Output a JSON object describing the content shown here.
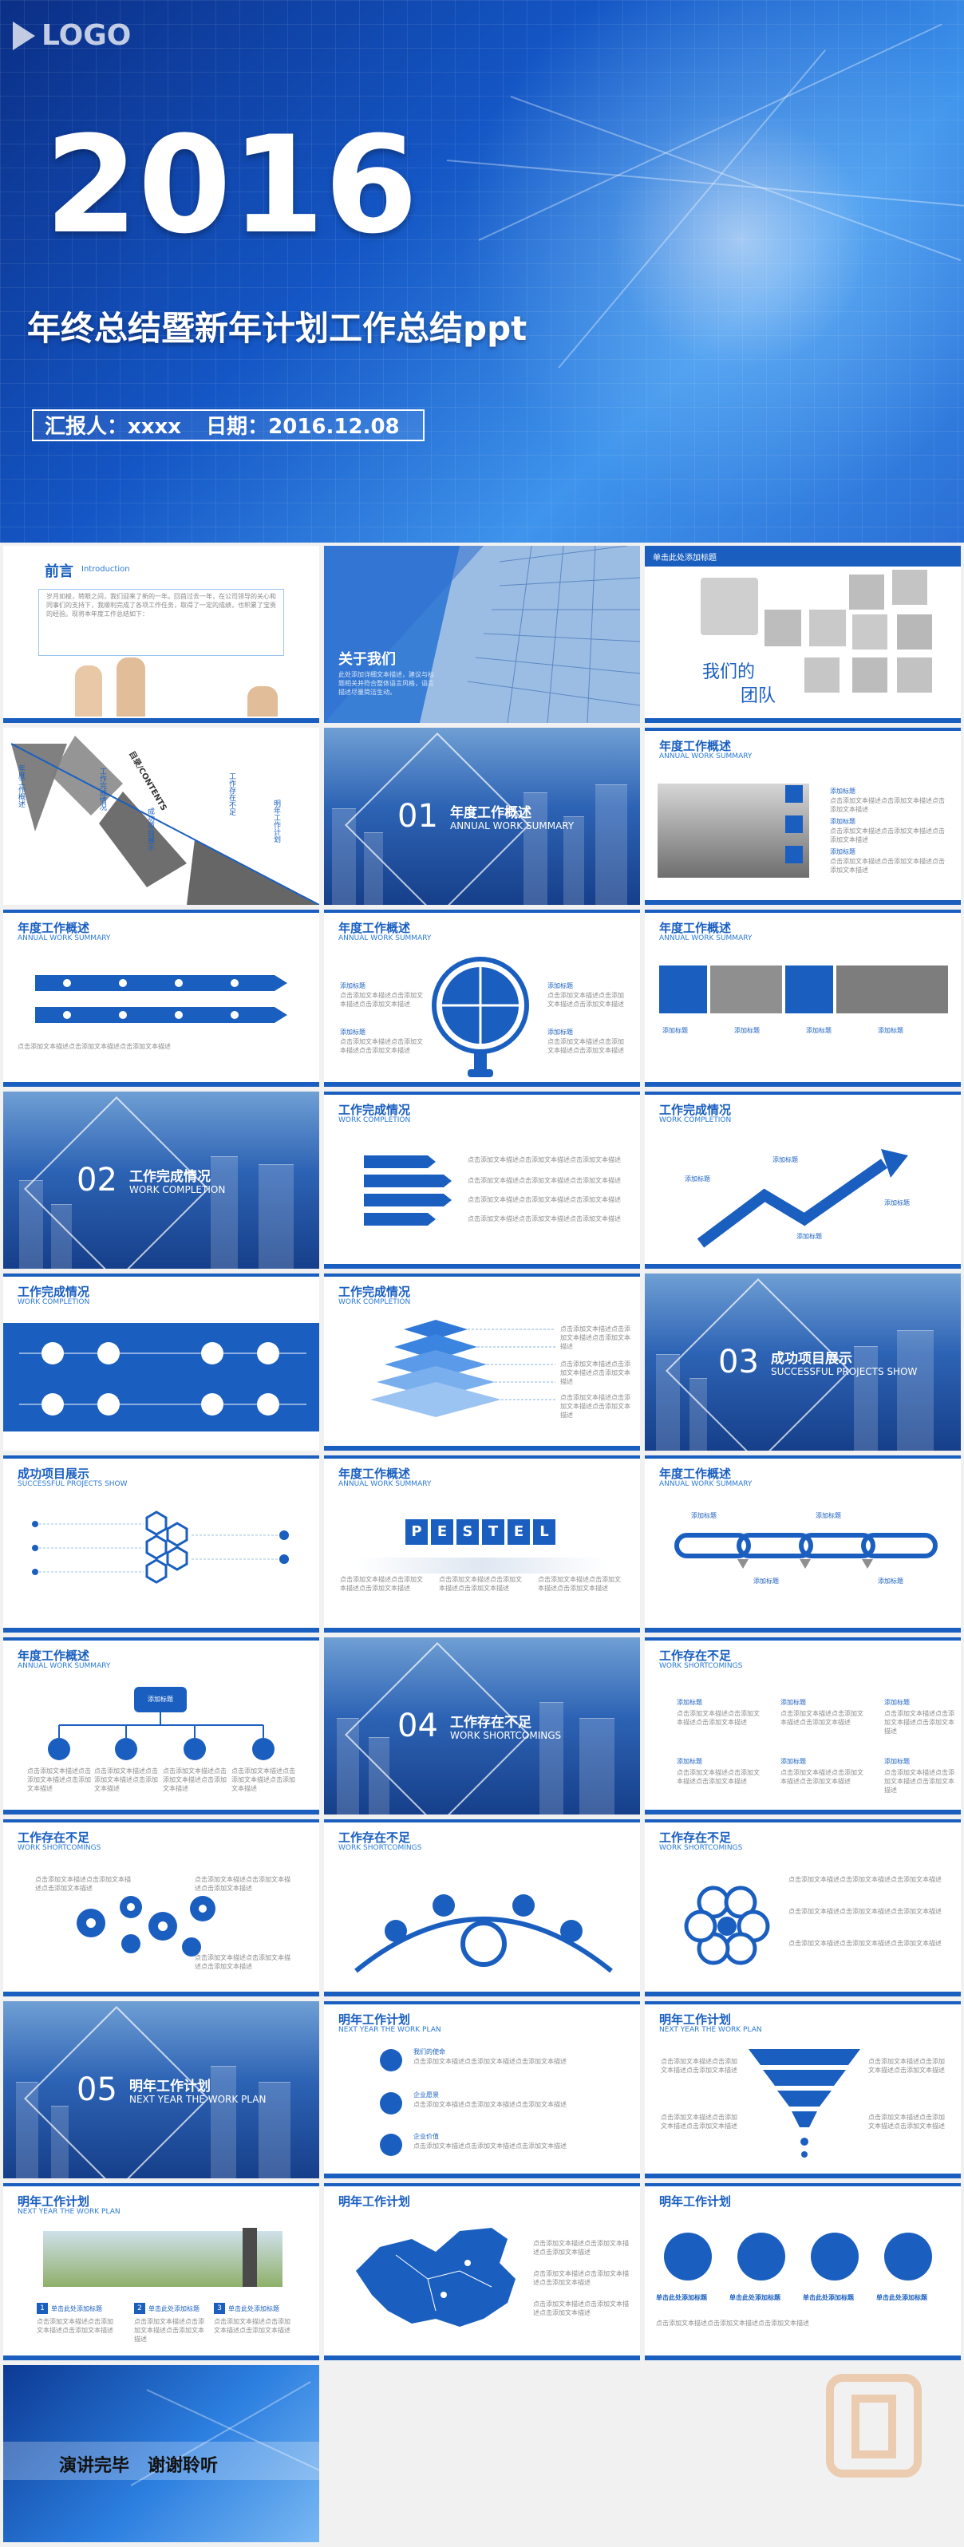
{
  "cover": {
    "logo": "LOGO",
    "year": "2016",
    "title": "年终总结暨新年计划工作总结ppt",
    "reporter_label": "汇报人：xxxx",
    "date_label": "日期：2016.12.08"
  },
  "slides": {
    "preface": {
      "title": "前言",
      "subtitle": "Introduction",
      "text": "岁月如梭，转眼之间，我们迎来了新的一年。回首过去一年，在公司领导的关心和同事们的支持下，我顺利完成了各项工作任务，取得了一定的成绩，也积累了宝贵的经验。现将本年度工作总结如下："
    },
    "about": {
      "title": "关于我们",
      "text": "此处添加详细文本描述，建议与标题相关并符合整体语言风格，语言描述尽量简洁生动。"
    },
    "team": {
      "banner": "单击此处添加标题",
      "title1": "我们的",
      "title2": "团队"
    },
    "contents": {
      "label": "目录/CONTENTS",
      "items": [
        "年度工作概述",
        "工作完成情况",
        "成功项目展示",
        "工作存在不足",
        "明年工作计划"
      ]
    },
    "sec01": {
      "num": "01",
      "title": "年度工作概述",
      "sub": "ANNUAL WORK SUMMARY"
    },
    "sec02": {
      "num": "02",
      "title": "工作完成情况",
      "sub": "WORK COMPLETION"
    },
    "sec03": {
      "num": "03",
      "title": "成功项目展示",
      "sub": "SUCCESSFUL PROJECTS SHOW"
    },
    "sec04": {
      "num": "04",
      "title": "工作存在不足",
      "sub": "WORK SHORTCOMINGS"
    },
    "sec05": {
      "num": "05",
      "title": "明年工作计划",
      "sub": "NEXT YEAR THE WORK PLAN"
    },
    "pestel": [
      "P",
      "E",
      "S",
      "T",
      "E",
      "L"
    ],
    "plan1_items": [
      "我们的使命",
      "企业愿景",
      "企业价值"
    ],
    "plan2_steps": [
      "单击此处添加标题",
      "单击此处添加标题",
      "单击此处添加标题"
    ],
    "closing": "演讲完毕   谢谢聆听"
  },
  "headers": {
    "annual": {
      "title": "年度工作概述",
      "sub": "ANNUAL WORK SUMMARY"
    },
    "completion": {
      "title": "工作完成情况",
      "sub": "WORK COMPLETION"
    },
    "projects": {
      "title": "成功项目展示",
      "sub": "SUCCESSFUL PROJECTS SHOW"
    },
    "shortcomings": {
      "title": "工作存在不足",
      "sub": "WORK SHORTCOMINGS"
    },
    "plan": {
      "title": "明年工作计划",
      "sub": "NEXT YEAR THE WORK PLAN"
    }
  },
  "common": {
    "add_title": "添加标题",
    "click_add_title": "单击此处添加标题",
    "placeholder": "点击添加文本描述点击添加文本描述点击添加文本描述"
  },
  "colors": {
    "primary": "#1a5fc0",
    "accent": "#2b7ad6"
  }
}
